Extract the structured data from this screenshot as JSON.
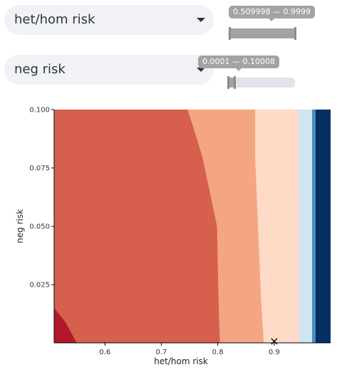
{
  "controls": {
    "het_hom_select": {
      "value": "het/hom risk",
      "caret_icon": "chevron-down-icon"
    },
    "het_hom_slider": {
      "label": "0.509998 — 0.9999",
      "low": 0.509998,
      "high": 0.9999,
      "min": 0.5,
      "max": 1.0
    },
    "neg_select": {
      "value": "neg risk",
      "caret_icon": "chevron-down-icon"
    },
    "neg_slider": {
      "label": "0.0001 — 0.10008",
      "low": 0.0001,
      "high": 0.10008,
      "min": 0.0,
      "max": 1.0
    }
  },
  "chart_data": {
    "type": "heatmap",
    "xlabel": "het/hom risk",
    "ylabel": "neg risk",
    "xlim": [
      0.51,
      1.0
    ],
    "ylim": [
      0.0001,
      0.1
    ],
    "x_ticks": [
      "0.6",
      "0.7",
      "0.8",
      "0.9"
    ],
    "x_tick_values": [
      0.6,
      0.7,
      0.8,
      0.9
    ],
    "y_ticks": [
      "0.025",
      "0.050",
      "0.075",
      "0.100"
    ],
    "y_tick_values": [
      0.025,
      0.05,
      0.075,
      0.1
    ],
    "marker": {
      "symbol": "×",
      "x": 0.9,
      "y": 0.0001
    },
    "regions": [
      {
        "name": "dark-red",
        "color": "#b2182b"
      },
      {
        "name": "red",
        "color": "#d6604d"
      },
      {
        "name": "salmon",
        "color": "#f4a582"
      },
      {
        "name": "peach",
        "color": "#fddbc7"
      },
      {
        "name": "light-blue",
        "color": "#d1e5f0"
      },
      {
        "name": "blue",
        "color": "#4393c3"
      },
      {
        "name": "navy",
        "color": "#053061"
      }
    ],
    "boundaries": {
      "red_salmon": [
        [
          0.8037,
          0.0001
        ],
        [
          0.8012,
          0.02
        ],
        [
          0.7987,
          0.05
        ],
        [
          0.7725,
          0.08
        ],
        [
          0.7467,
          0.1
        ]
      ],
      "salmon_peach": [
        [
          0.8815,
          0.0001
        ],
        [
          0.8765,
          0.02
        ],
        [
          0.8713,
          0.05
        ],
        [
          0.8662,
          0.08
        ],
        [
          0.8662,
          0.1
        ]
      ],
      "peach_lightblue": [
        [
          0.9441,
          0.0001
        ],
        [
          0.9441,
          0.05
        ],
        [
          0.9428,
          0.1
        ]
      ],
      "lightblue_blue": [
        [
          0.9671,
          0.0001
        ],
        [
          0.9671,
          0.1
        ]
      ],
      "blue_navy": [
        [
          0.9734,
          0.0001
        ],
        [
          0.9734,
          0.1
        ]
      ],
      "darkred_region": [
        [
          0.51,
          0.015
        ],
        [
          0.53,
          0.009
        ],
        [
          0.55,
          0.0001
        ],
        [
          0.51,
          0.0001
        ]
      ]
    }
  }
}
